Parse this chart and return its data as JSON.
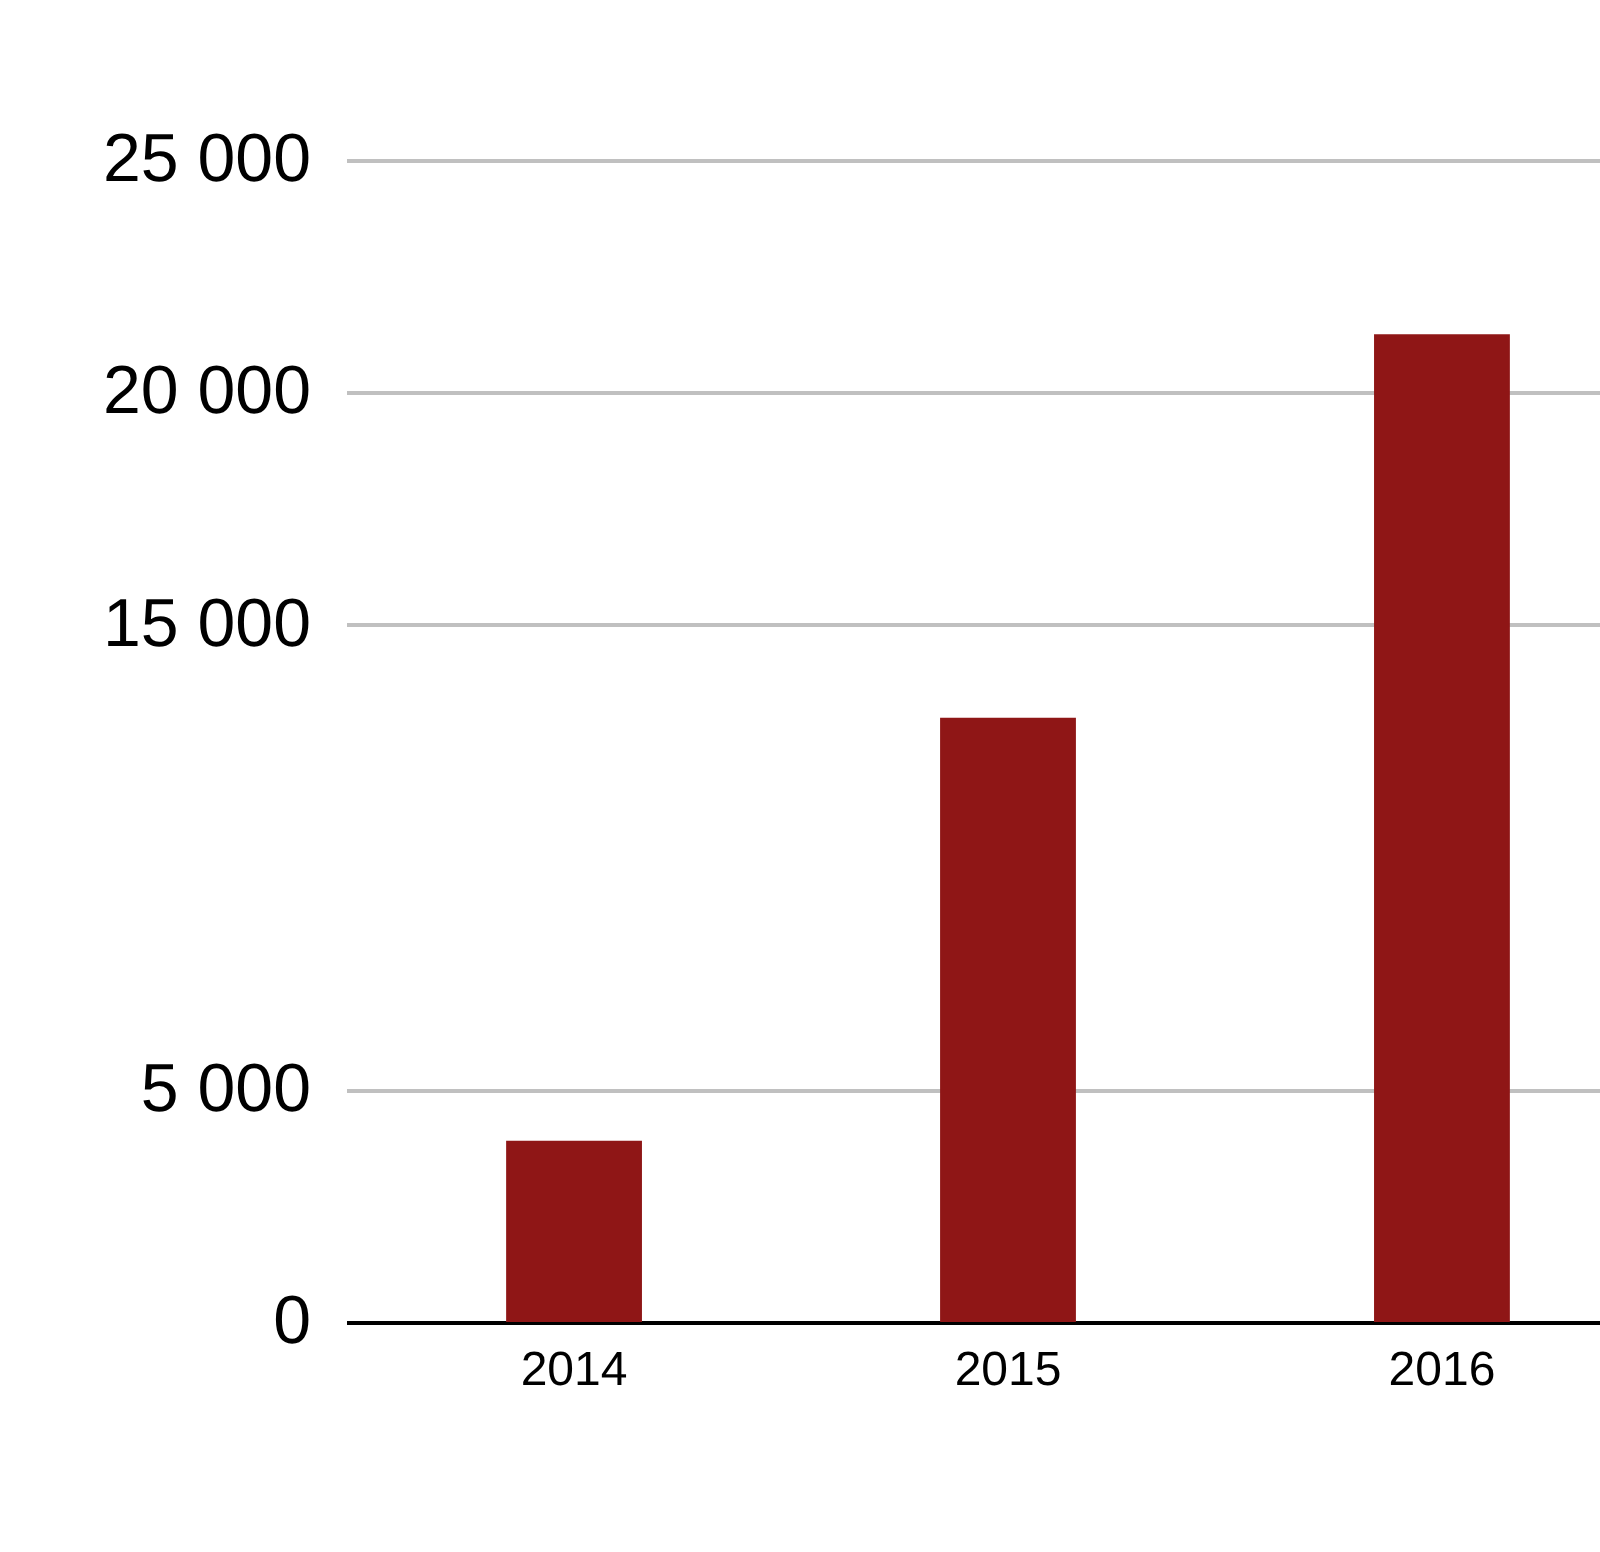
{
  "chart_data": {
    "type": "bar",
    "categories": [
      "2014",
      "2015",
      "2016"
    ],
    "series": [
      {
        "color": "#8f1616",
        "values": [
          3900,
          13000,
          21250
        ]
      }
    ],
    "ylim": [
      0,
      25000
    ],
    "yticks": [
      0,
      {
        "value": 5000,
        "label": "5 000"
      },
      {
        "value": 15000,
        "label": "15 000"
      },
      {
        "value": 20000,
        "label": "20 000"
      },
      {
        "value": 25000,
        "label": "25 000"
      }
    ],
    "grid": "y",
    "legend": false
  }
}
